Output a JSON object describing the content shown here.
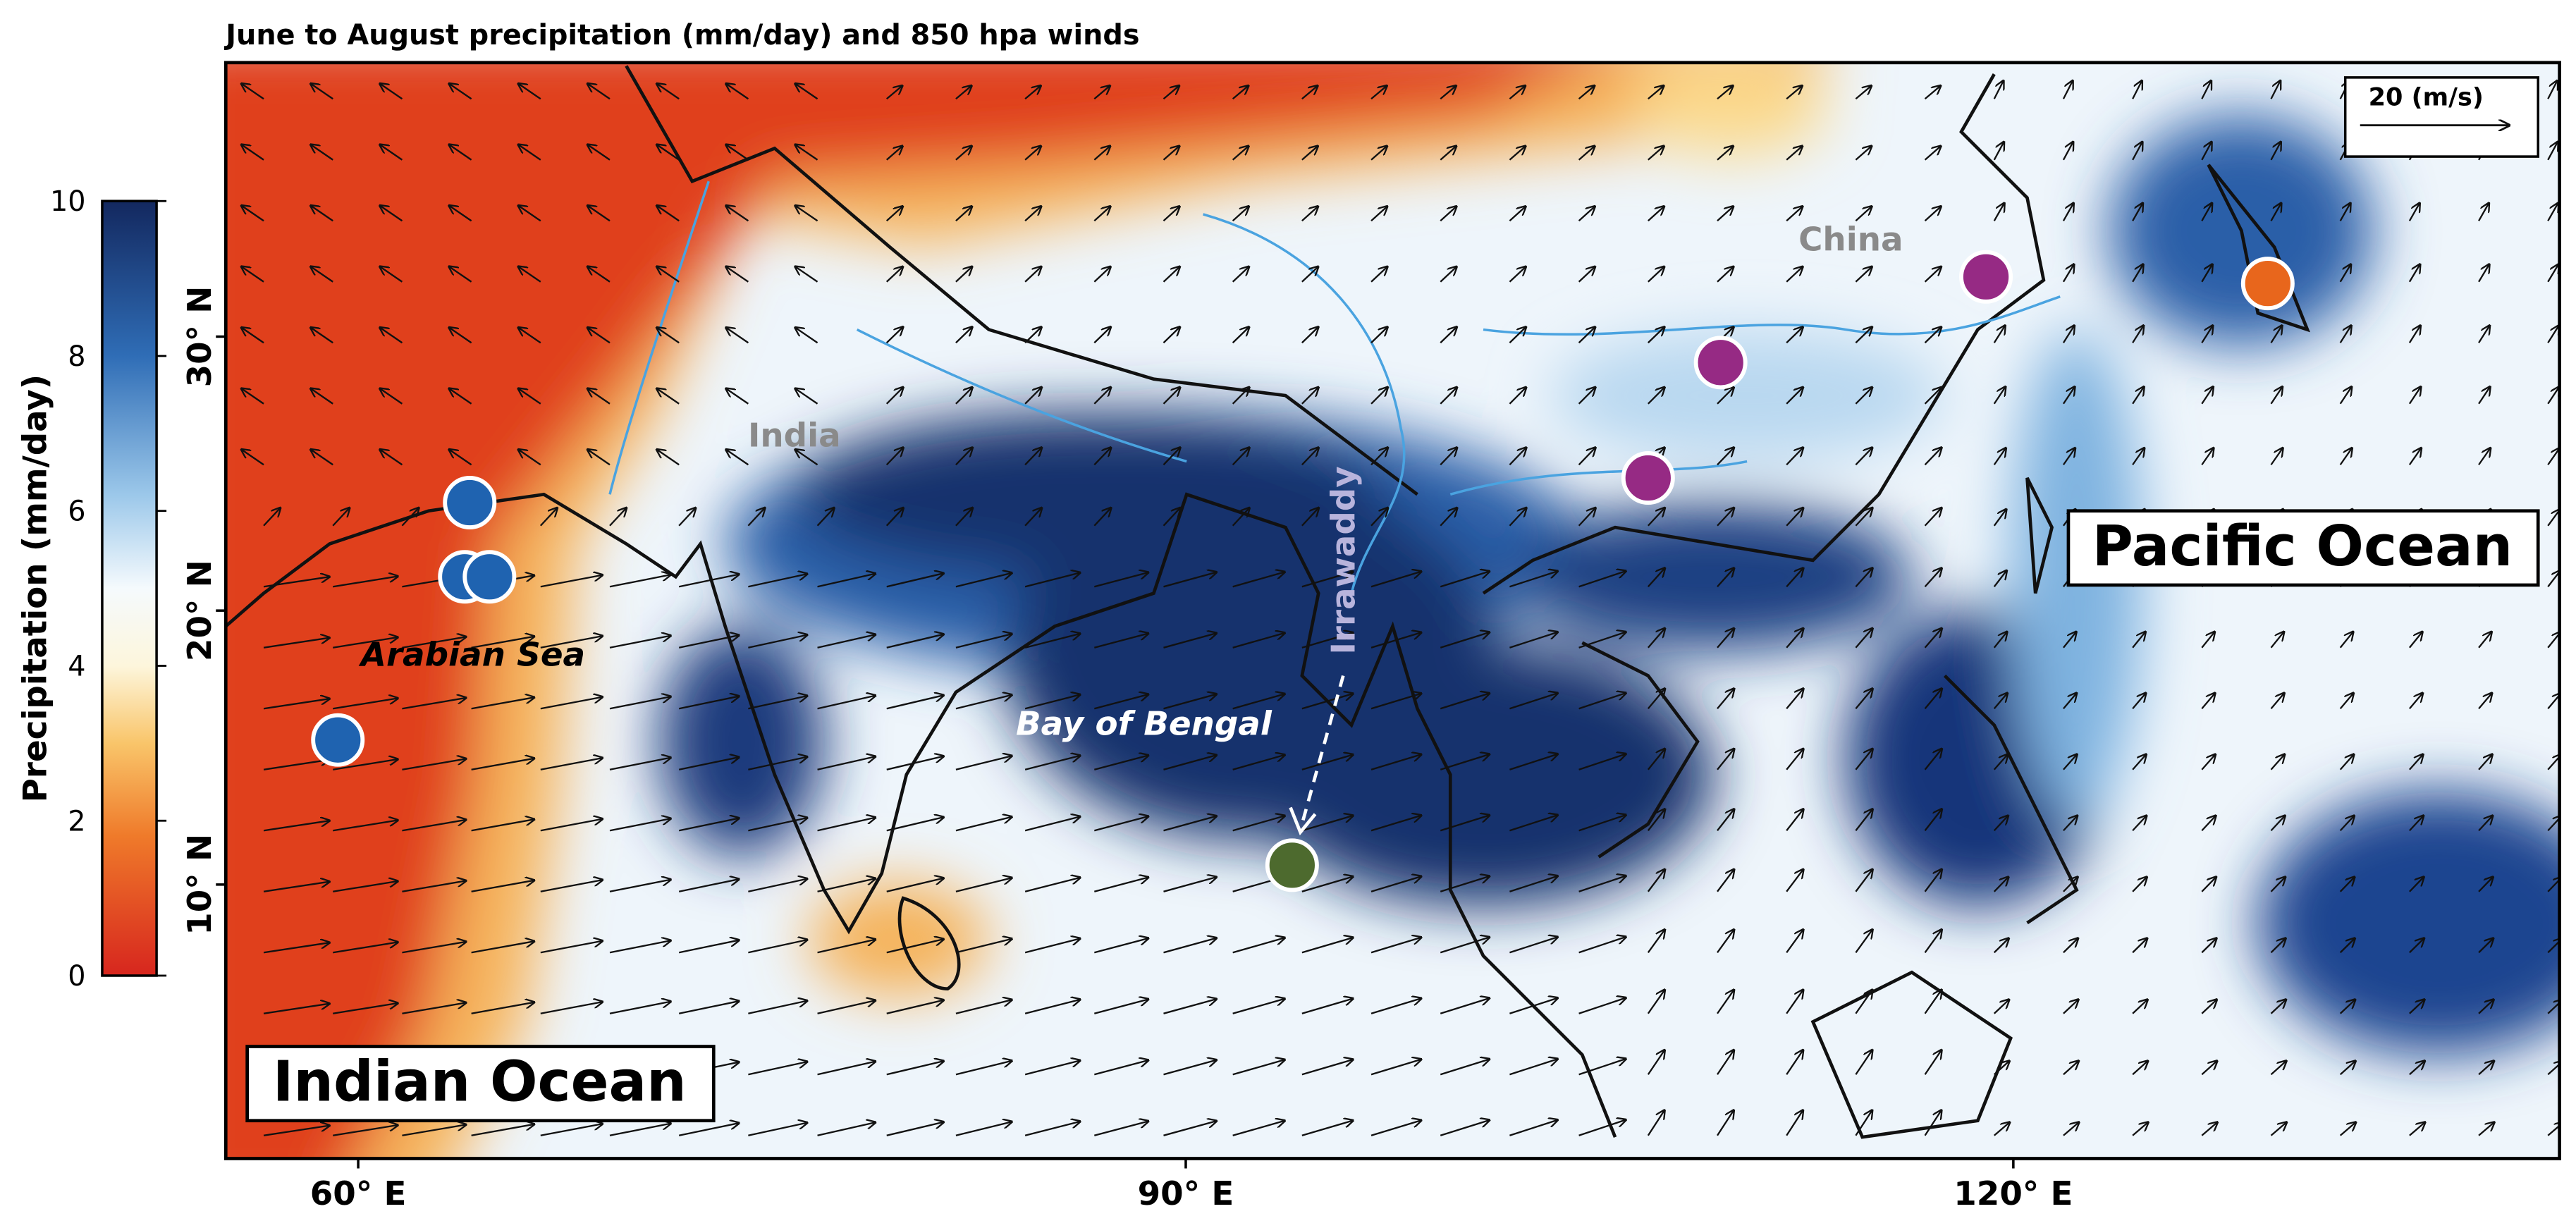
{
  "title": "June to August precipitation (mm/day) and 850 hpa winds",
  "colorbar": {
    "label": "Precipitation (mm/day)",
    "lim": [
      0,
      10
    ],
    "ticks": [
      0,
      2,
      4,
      6,
      8,
      10
    ]
  },
  "axes": {
    "lon_lim": [
      55.2,
      139.8
    ],
    "lat_lim": [
      0,
      40
    ],
    "lon_ticks": [
      {
        "value": 60,
        "label": "60° E"
      },
      {
        "value": 90,
        "label": "90° E"
      },
      {
        "value": 120,
        "label": "120° E"
      }
    ],
    "lat_ticks": [
      {
        "value": 10,
        "label": "10° N"
      },
      {
        "value": 20,
        "label": "20° N"
      },
      {
        "value": 30,
        "label": "30° N"
      }
    ]
  },
  "labels": {
    "indian_ocean": "Indian Ocean",
    "pacific_ocean": "Pacific Ocean",
    "arabian_sea": "Arabian Sea",
    "bay_of_bengal": "Bay of Bengal",
    "india": "India",
    "china": "China",
    "irrawaddy": "Irrawaddy"
  },
  "wind_scale": "20 (m/s)"
}
